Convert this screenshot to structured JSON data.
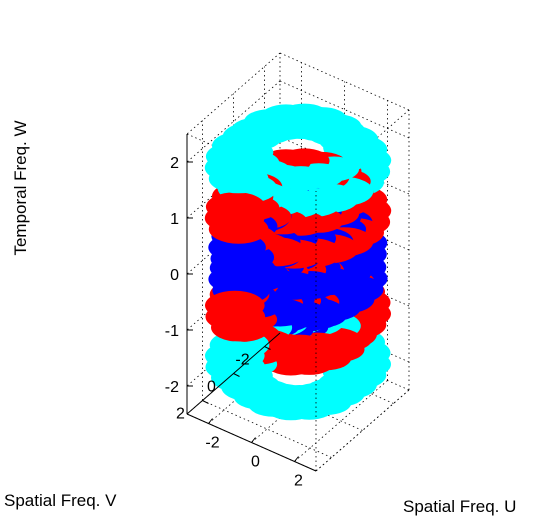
{
  "chart_data": {
    "type": "scatter",
    "projection": "3d",
    "title": "",
    "xlabel": "Spatial Freq. U",
    "ylabel": "Spatial Freq. V",
    "zlabel": "Temporal Freq. W",
    "xlim": [
      -3,
      3
    ],
    "ylim": [
      -3,
      3
    ],
    "zlim": [
      -2.5,
      2.5
    ],
    "x_ticks": [
      "-2",
      "0",
      "2"
    ],
    "y_ticks": [
      "-2",
      "0",
      "2"
    ],
    "z_ticks": [
      "-2",
      "-1",
      "0",
      "1",
      "2"
    ],
    "grid": true,
    "box": "wireframe",
    "marker": "filled ellipse",
    "series": [
      {
        "color": "#0000ff",
        "layers": [
          {
            "w": 0.25,
            "radius": 2.3
          },
          {
            "w": 0.55,
            "radius": 1.7
          },
          {
            "w": 0.95,
            "radius": 0.95
          },
          {
            "w": -0.25,
            "radius": 2.3
          },
          {
            "w": -0.55,
            "radius": 1.7
          },
          {
            "w": -0.95,
            "radius": 0.95
          }
        ]
      },
      {
        "color": "#ff0000",
        "layers": [
          {
            "w": 0.85,
            "radius": 2.4
          },
          {
            "w": 1.25,
            "radius": 1.9
          },
          {
            "w": -0.85,
            "radius": 2.4
          },
          {
            "w": -1.25,
            "radius": 1.9
          }
        ]
      },
      {
        "color": "#00ffff",
        "layers": [
          {
            "w": 1.75,
            "radius": 2.4
          },
          {
            "w": 2.05,
            "radius": 1.9
          },
          {
            "w": -1.75,
            "radius": 2.4
          },
          {
            "w": -2.05,
            "radius": 1.9
          }
        ]
      }
    ]
  }
}
